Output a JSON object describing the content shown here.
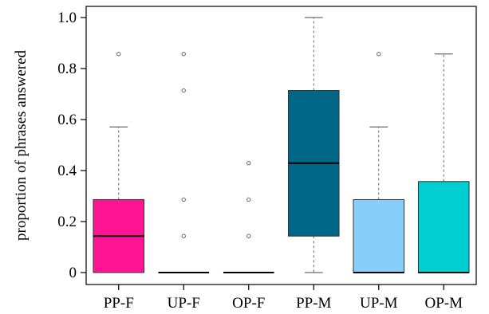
{
  "chart_data": {
    "type": "box",
    "title": "",
    "xlabel": "",
    "ylabel": "proportion of phrases answered",
    "ylim": [
      0,
      1.0
    ],
    "yticks": [
      0,
      0.2,
      0.4,
      0.6,
      0.8,
      1.0
    ],
    "ytick_labels": [
      "0",
      "0.2",
      "0.4",
      "0.6",
      "0.8",
      "1.0"
    ],
    "grid": false,
    "legend": "none",
    "categories": [
      "PP-F",
      "UP-F",
      "OP-F",
      "PP-M",
      "UP-M",
      "OP-M"
    ],
    "boxes": [
      {
        "category": "PP-F",
        "whisker_low": 0,
        "q1": 0,
        "median": 0.143,
        "q3": 0.286,
        "whisker_high": 0.571,
        "outliers": [
          0.857
        ],
        "color": "#FF1493"
      },
      {
        "category": "UP-F",
        "whisker_low": 0,
        "q1": 0,
        "median": 0,
        "q3": 0,
        "whisker_high": 0,
        "outliers": [
          0.143,
          0.286,
          0.714,
          0.857
        ],
        "color": "#FF1493"
      },
      {
        "category": "OP-F",
        "whisker_low": 0,
        "q1": 0,
        "median": 0,
        "q3": 0,
        "whisker_high": 0,
        "outliers": [
          0.143,
          0.286,
          0.429
        ],
        "color": "#FF1493"
      },
      {
        "category": "PP-M",
        "whisker_low": 0,
        "q1": 0.143,
        "median": 0.429,
        "q3": 0.714,
        "whisker_high": 1.0,
        "outliers": [],
        "color": "#006688"
      },
      {
        "category": "UP-M",
        "whisker_low": 0,
        "q1": 0,
        "median": 0,
        "q3": 0.286,
        "whisker_high": 0.571,
        "outliers": [
          0.857
        ],
        "color": "#87CEFA"
      },
      {
        "category": "OP-M",
        "whisker_low": 0,
        "q1": 0,
        "median": 0,
        "q3": 0.357,
        "whisker_high": 0.857,
        "outliers": [],
        "color": "#00CED1"
      }
    ]
  }
}
